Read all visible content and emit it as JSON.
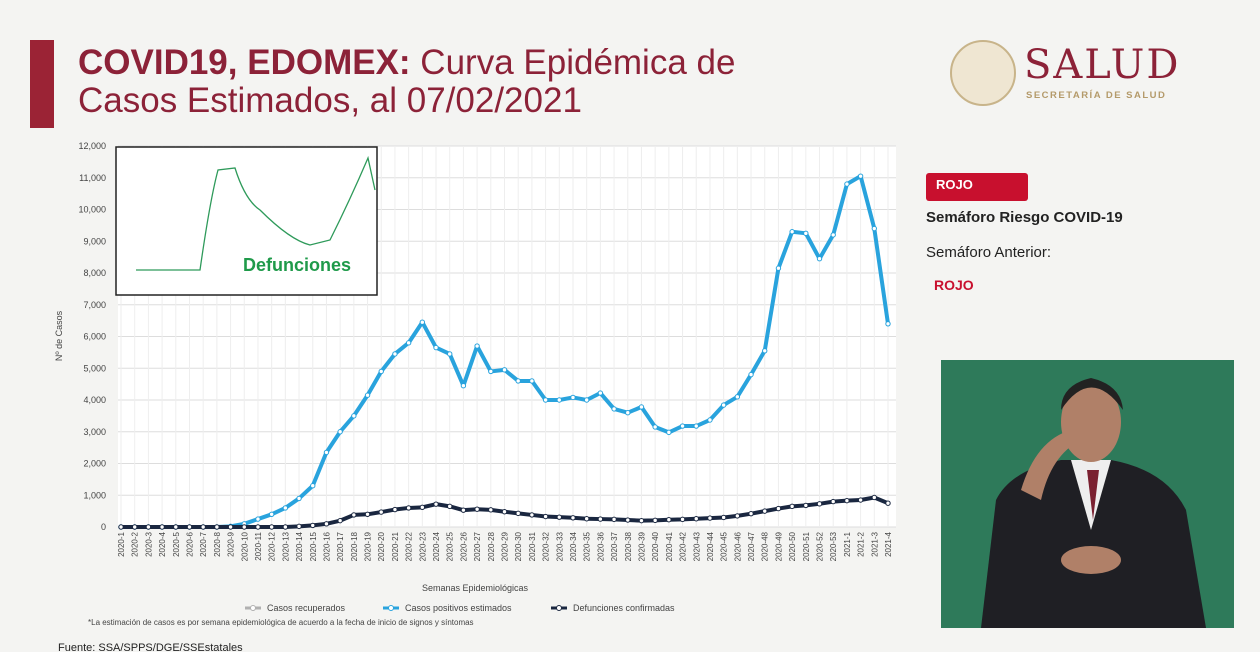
{
  "header": {
    "title_bold": "COVID19, EDOMEX:",
    "title_rest": " Curva Epidémica de Casos Estimados, al 07/02/2021",
    "logo_main": "SALUD",
    "logo_sub": "SECRETARÍA DE SALUD"
  },
  "side": {
    "badge1": "ROJO",
    "label1": "Semáforo Riesgo COVID-19",
    "label2": "Semáforo Anterior:",
    "badge2": "ROJO"
  },
  "inset": {
    "label": "Defunciones"
  },
  "footer": {
    "note": "*La estimación de casos es por semana epidemiológica de acuerdo a la fecha de inicio de signos y síntomas",
    "source": "Fuente: SSA/SPPS/DGE/SSEstatales"
  },
  "chart_data": {
    "type": "line",
    "x_label": "Semanas Epidemiológicas",
    "y_label": "Nº de Casos",
    "categories": [
      "2020-1",
      "2020-2",
      "2020-3",
      "2020-4",
      "2020-5",
      "2020-6",
      "2020-7",
      "2020-8",
      "2020-9",
      "2020-10",
      "2020-11",
      "2020-12",
      "2020-13",
      "2020-14",
      "2020-15",
      "2020-16",
      "2020-17",
      "2020-18",
      "2020-19",
      "2020-20",
      "2020-21",
      "2020-22",
      "2020-23",
      "2020-24",
      "2020-25",
      "2020-26",
      "2020-27",
      "2020-28",
      "2020-29",
      "2020-30",
      "2020-31",
      "2020-32",
      "2020-33",
      "2020-34",
      "2020-35",
      "2020-36",
      "2020-37",
      "2020-38",
      "2020-39",
      "2020-40",
      "2020-41",
      "2020-42",
      "2020-43",
      "2020-44",
      "2020-45",
      "2020-46",
      "2020-47",
      "2020-48",
      "2020-49",
      "2020-50",
      "2020-51",
      "2020-52",
      "2020-53",
      "2021-1",
      "2021-2",
      "2021-3",
      "2021-4"
    ],
    "series": [
      {
        "name": "Casos recuperados",
        "color": "#b0b0b0",
        "values": [
          null,
          null,
          null,
          null,
          null,
          null,
          null,
          null,
          null,
          null,
          null,
          null,
          null,
          null,
          null,
          null,
          null,
          null,
          null,
          null,
          null,
          null,
          null,
          null,
          null,
          null,
          null,
          null,
          null,
          null,
          null,
          null,
          null,
          null,
          null,
          null,
          null,
          null,
          null,
          null,
          null,
          null,
          null,
          null,
          null,
          null,
          null,
          null,
          null,
          null,
          null,
          null,
          null,
          null,
          null,
          null,
          null
        ]
      },
      {
        "name": "Casos positivos estimados",
        "color": "#29a3dd",
        "values": [
          0,
          0,
          0,
          0,
          0,
          0,
          0,
          0,
          20,
          100,
          250,
          400,
          600,
          900,
          1300,
          2350,
          3000,
          3500,
          4150,
          4900,
          5450,
          5800,
          6450,
          5650,
          5450,
          4450,
          5700,
          4900,
          4950,
          4600,
          4600,
          4000,
          4000,
          4080,
          4000,
          4220,
          3720,
          3600,
          3780,
          3150,
          2980,
          3180,
          3180,
          3370,
          3840,
          4100,
          4800,
          5550,
          8150,
          9300,
          9250,
          8450,
          9200,
          10800,
          11050,
          9400,
          6400
        ]
      },
      {
        "name": "Defunciones confirmadas",
        "color": "#1a2740",
        "values": [
          0,
          0,
          0,
          0,
          0,
          0,
          0,
          0,
          0,
          0,
          0,
          0,
          0,
          20,
          50,
          100,
          200,
          380,
          400,
          470,
          550,
          600,
          620,
          720,
          650,
          530,
          560,
          540,
          480,
          430,
          380,
          330,
          310,
          290,
          260,
          250,
          240,
          220,
          200,
          210,
          230,
          240,
          260,
          280,
          300,
          350,
          420,
          500,
          580,
          650,
          680,
          730,
          800,
          830,
          850,
          930,
          750
        ]
      }
    ],
    "ylim": [
      0,
      12000
    ],
    "yticks": [
      0,
      {
        "value": 1000,
        "label": "1,000"
      },
      {
        "value": 2000,
        "label": "2,000"
      },
      {
        "value": 3000,
        "label": "3,000"
      },
      {
        "value": 4000,
        "label": "4,000"
      },
      {
        "value": 5000,
        "label": "5,000"
      },
      {
        "value": 6000,
        "label": "6,000"
      },
      {
        "value": 7000,
        "label": "7,000"
      },
      {
        "value": 8000,
        "label": "8,000"
      },
      {
        "value": 9000,
        "label": "9,000"
      },
      {
        "value": 10000,
        "label": "10,000"
      },
      {
        "value": 11000,
        "label": "11,000"
      },
      {
        "value": 12000,
        "label": "12,000"
      }
    ],
    "grid": true
  }
}
